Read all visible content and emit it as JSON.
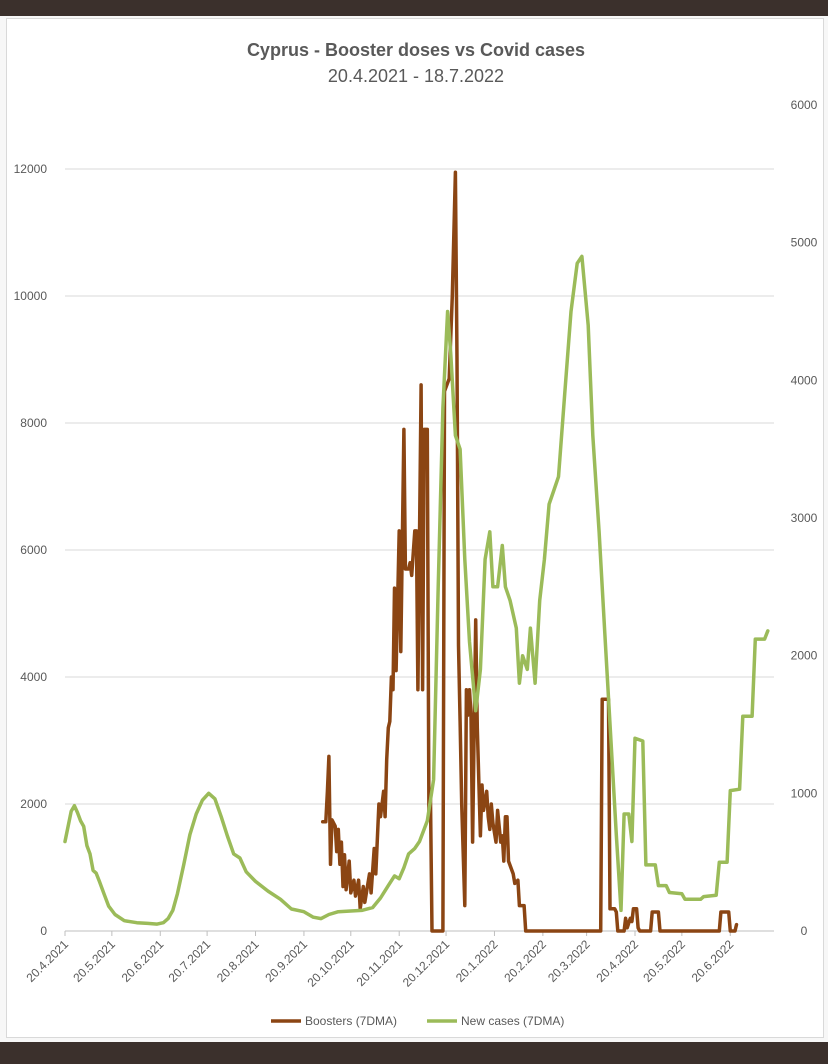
{
  "chart_data": {
    "type": "line",
    "title": "Cyprus - Booster doses vs Covid cases",
    "subtitle": "20.4.2021 - 18.7.2022",
    "x_tick_labels": [
      "20.4.2021",
      "20.5.2021",
      "20.6.2021",
      "20.7.2021",
      "20.8.2021",
      "20.9.2021",
      "20.10.2021",
      "20.11.2021",
      "20.12.2021",
      "20.1.2022",
      "20.2.2022",
      "20.3.2022",
      "20.4.2022",
      "20.5.2022",
      "20.6.2022"
    ],
    "x_range": [
      "2021-04-20",
      "2022-07-18"
    ],
    "y_left": {
      "ylim": [
        0,
        12000
      ],
      "ticks": [
        "0",
        "2000",
        "4000",
        "6000",
        "8000",
        "10000",
        "12000"
      ]
    },
    "y_right": {
      "ylim": [
        0,
        6000
      ],
      "ticks": [
        "0",
        "1000",
        "2000",
        "3000",
        "4000",
        "5000",
        "6000"
      ]
    },
    "grid": true,
    "legend_position": "bottom",
    "series": [
      {
        "name": "Boosters (7DMA)",
        "axis": "left",
        "color": "#8b4513",
        "points": [
          [
            "2021-10-02",
            1720
          ],
          [
            "2021-10-04",
            1720
          ],
          [
            "2021-10-05",
            2200
          ],
          [
            "2021-10-06",
            2750
          ],
          [
            "2021-10-07",
            1050
          ],
          [
            "2021-10-08",
            1750
          ],
          [
            "2021-10-10",
            1650
          ],
          [
            "2021-10-11",
            1250
          ],
          [
            "2021-10-12",
            1600
          ],
          [
            "2021-10-13",
            1050
          ],
          [
            "2021-10-14",
            1400
          ],
          [
            "2021-10-15",
            700
          ],
          [
            "2021-10-16",
            1200
          ],
          [
            "2021-10-17",
            650
          ],
          [
            "2021-10-19",
            1100
          ],
          [
            "2021-10-20",
            600
          ],
          [
            "2021-10-22",
            800
          ],
          [
            "2021-10-23",
            550
          ],
          [
            "2021-10-25",
            800
          ],
          [
            "2021-10-26",
            350
          ],
          [
            "2021-10-28",
            700
          ],
          [
            "2021-10-29",
            450
          ],
          [
            "2021-11-01",
            900
          ],
          [
            "2021-11-02",
            600
          ],
          [
            "2021-11-04",
            1300
          ],
          [
            "2021-11-05",
            900
          ],
          [
            "2021-11-07",
            2000
          ],
          [
            "2021-11-08",
            1800
          ],
          [
            "2021-11-10",
            2200
          ],
          [
            "2021-11-11",
            1800
          ],
          [
            "2021-11-12",
            2700
          ],
          [
            "2021-11-13",
            3200
          ],
          [
            "2021-11-14",
            3300
          ],
          [
            "2021-11-15",
            4000
          ],
          [
            "2021-11-16",
            3800
          ],
          [
            "2021-11-17",
            5400
          ],
          [
            "2021-11-18",
            4100
          ],
          [
            "2021-11-20",
            6300
          ],
          [
            "2021-11-21",
            4400
          ],
          [
            "2021-11-23",
            7900
          ],
          [
            "2021-11-24",
            5700
          ],
          [
            "2021-11-26",
            5700
          ],
          [
            "2021-11-27",
            5800
          ],
          [
            "2021-11-28",
            5600
          ],
          [
            "2021-11-30",
            6300
          ],
          [
            "2021-12-01",
            6300
          ],
          [
            "2021-12-02",
            3800
          ],
          [
            "2021-12-04",
            8600
          ],
          [
            "2021-12-05",
            3800
          ],
          [
            "2021-12-06",
            7900
          ],
          [
            "2021-12-08",
            7900
          ],
          [
            "2021-12-09",
            1900
          ],
          [
            "2021-12-10",
            2200
          ],
          [
            "2021-12-11",
            0
          ],
          [
            "2021-12-18",
            0
          ],
          [
            "2021-12-19",
            8500
          ],
          [
            "2021-12-22",
            8700
          ],
          [
            "2021-12-24",
            10000
          ],
          [
            "2021-12-26",
            11950
          ],
          [
            "2021-12-27",
            9000
          ],
          [
            "2021-12-28",
            4500
          ],
          [
            "2021-12-29",
            3300
          ],
          [
            "2021-12-30",
            2000
          ],
          [
            "2022-01-01",
            400
          ],
          [
            "2022-01-02",
            3800
          ],
          [
            "2022-01-03",
            3400
          ],
          [
            "2022-01-04",
            3800
          ],
          [
            "2022-01-05",
            3400
          ],
          [
            "2022-01-06",
            1400
          ],
          [
            "2022-01-08",
            4900
          ],
          [
            "2022-01-09",
            3200
          ],
          [
            "2022-01-11",
            1500
          ],
          [
            "2022-01-12",
            2300
          ],
          [
            "2022-01-13",
            1900
          ],
          [
            "2022-01-15",
            2200
          ],
          [
            "2022-01-16",
            1800
          ],
          [
            "2022-01-17",
            1600
          ],
          [
            "2022-01-18",
            2000
          ],
          [
            "2022-01-19",
            1700
          ],
          [
            "2022-01-21",
            1400
          ],
          [
            "2022-01-22",
            1900
          ],
          [
            "2022-01-24",
            1400
          ],
          [
            "2022-01-25",
            1500
          ],
          [
            "2022-01-26",
            1100
          ],
          [
            "2022-01-27",
            1800
          ],
          [
            "2022-01-28",
            1800
          ],
          [
            "2022-01-29",
            1100
          ],
          [
            "2022-02-01",
            900
          ],
          [
            "2022-02-02",
            750
          ],
          [
            "2022-02-04",
            800
          ],
          [
            "2022-02-05",
            400
          ],
          [
            "2022-02-08",
            400
          ],
          [
            "2022-02-09",
            0
          ],
          [
            "2022-03-24",
            0
          ],
          [
            "2022-03-29",
            0
          ],
          [
            "2022-03-30",
            3650
          ],
          [
            "2022-04-03",
            3650
          ],
          [
            "2022-04-04",
            350
          ],
          [
            "2022-04-07",
            350
          ],
          [
            "2022-04-08",
            300
          ],
          [
            "2022-04-09",
            0
          ],
          [
            "2022-04-13",
            0
          ],
          [
            "2022-04-14",
            200
          ],
          [
            "2022-04-15",
            50
          ],
          [
            "2022-04-17",
            200
          ],
          [
            "2022-04-18",
            150
          ],
          [
            "2022-04-19",
            350
          ],
          [
            "2022-04-21",
            350
          ],
          [
            "2022-04-22",
            50
          ],
          [
            "2022-04-23",
            0
          ],
          [
            "2022-04-30",
            0
          ],
          [
            "2022-05-01",
            300
          ],
          [
            "2022-05-05",
            300
          ],
          [
            "2022-05-06",
            0
          ],
          [
            "2022-06-13",
            0
          ],
          [
            "2022-06-14",
            300
          ],
          [
            "2022-06-19",
            300
          ],
          [
            "2022-06-20",
            0
          ],
          [
            "2022-06-23",
            0
          ],
          [
            "2022-06-24",
            100
          ]
        ]
      },
      {
        "name": "New cases (7DMA)",
        "axis": "right",
        "color": "#9bbb59",
        "points": [
          [
            "2021-04-20",
            650
          ],
          [
            "2021-04-22",
            760
          ],
          [
            "2021-04-24",
            870
          ],
          [
            "2021-04-26",
            910
          ],
          [
            "2021-04-28",
            860
          ],
          [
            "2021-04-30",
            800
          ],
          [
            "2021-05-02",
            760
          ],
          [
            "2021-05-04",
            620
          ],
          [
            "2021-05-06",
            560
          ],
          [
            "2021-05-08",
            440
          ],
          [
            "2021-05-10",
            420
          ],
          [
            "2021-05-12",
            360
          ],
          [
            "2021-05-15",
            270
          ],
          [
            "2021-05-18",
            180
          ],
          [
            "2021-05-22",
            120
          ],
          [
            "2021-05-28",
            75
          ],
          [
            "2021-06-05",
            60
          ],
          [
            "2021-06-12",
            55
          ],
          [
            "2021-06-18",
            50
          ],
          [
            "2021-06-22",
            60
          ],
          [
            "2021-06-25",
            90
          ],
          [
            "2021-06-28",
            150
          ],
          [
            "2021-07-01",
            270
          ],
          [
            "2021-07-05",
            480
          ],
          [
            "2021-07-09",
            700
          ],
          [
            "2021-07-13",
            850
          ],
          [
            "2021-07-17",
            950
          ],
          [
            "2021-07-21",
            1000
          ],
          [
            "2021-07-25",
            960
          ],
          [
            "2021-07-29",
            830
          ],
          [
            "2021-08-02",
            690
          ],
          [
            "2021-08-06",
            560
          ],
          [
            "2021-08-10",
            530
          ],
          [
            "2021-08-14",
            430
          ],
          [
            "2021-08-20",
            360
          ],
          [
            "2021-08-28",
            290
          ],
          [
            "2021-09-05",
            230
          ],
          [
            "2021-09-12",
            160
          ],
          [
            "2021-09-20",
            140
          ],
          [
            "2021-09-26",
            100
          ],
          [
            "2021-10-01",
            90
          ],
          [
            "2021-10-06",
            120
          ],
          [
            "2021-10-12",
            140
          ],
          [
            "2021-10-20",
            145
          ],
          [
            "2021-10-27",
            150
          ],
          [
            "2021-11-03",
            170
          ],
          [
            "2021-11-08",
            240
          ],
          [
            "2021-11-13",
            330
          ],
          [
            "2021-11-17",
            400
          ],
          [
            "2021-11-20",
            380
          ],
          [
            "2021-11-23",
            460
          ],
          [
            "2021-11-26",
            560
          ],
          [
            "2021-11-30",
            600
          ],
          [
            "2021-12-03",
            650
          ],
          [
            "2021-12-08",
            800
          ],
          [
            "2021-12-12",
            1100
          ],
          [
            "2021-12-15",
            2500
          ],
          [
            "2021-12-18",
            3800
          ],
          [
            "2021-12-21",
            4500
          ],
          [
            "2021-12-23",
            4200
          ],
          [
            "2021-12-26",
            3600
          ],
          [
            "2021-12-29",
            3500
          ],
          [
            "2022-01-01",
            2700
          ],
          [
            "2022-01-04",
            2100
          ],
          [
            "2022-01-08",
            1600
          ],
          [
            "2022-01-11",
            1900
          ],
          [
            "2022-01-14",
            2700
          ],
          [
            "2022-01-17",
            2900
          ],
          [
            "2022-01-19",
            2500
          ],
          [
            "2022-01-22",
            2500
          ],
          [
            "2022-01-25",
            2800
          ],
          [
            "2022-01-27",
            2500
          ],
          [
            "2022-01-30",
            2400
          ],
          [
            "2022-02-03",
            2200
          ],
          [
            "2022-02-05",
            1800
          ],
          [
            "2022-02-07",
            2000
          ],
          [
            "2022-02-10",
            1900
          ],
          [
            "2022-02-12",
            2200
          ],
          [
            "2022-02-15",
            1800
          ],
          [
            "2022-02-18",
            2400
          ],
          [
            "2022-02-21",
            2700
          ],
          [
            "2022-02-24",
            3100
          ],
          [
            "2022-02-27",
            3200
          ],
          [
            "2022-03-02",
            3300
          ],
          [
            "2022-03-06",
            3900
          ],
          [
            "2022-03-10",
            4500
          ],
          [
            "2022-03-14",
            4850
          ],
          [
            "2022-03-17",
            4900
          ],
          [
            "2022-03-21",
            4400
          ],
          [
            "2022-03-24",
            3600
          ],
          [
            "2022-03-28",
            2900
          ],
          [
            "2022-04-01",
            2100
          ],
          [
            "2022-04-05",
            1300
          ],
          [
            "2022-04-08",
            700
          ],
          [
            "2022-04-11",
            150
          ],
          [
            "2022-04-13",
            850
          ],
          [
            "2022-04-16",
            850
          ],
          [
            "2022-04-18",
            650
          ],
          [
            "2022-04-20",
            1400
          ],
          [
            "2022-04-25",
            1380
          ],
          [
            "2022-04-27",
            480
          ],
          [
            "2022-05-03",
            480
          ],
          [
            "2022-05-05",
            330
          ],
          [
            "2022-05-10",
            330
          ],
          [
            "2022-05-12",
            280
          ],
          [
            "2022-05-20",
            270
          ],
          [
            "2022-05-22",
            230
          ],
          [
            "2022-06-01",
            230
          ],
          [
            "2022-06-03",
            250
          ],
          [
            "2022-06-11",
            260
          ],
          [
            "2022-06-13",
            500
          ],
          [
            "2022-06-18",
            500
          ],
          [
            "2022-06-20",
            1020
          ],
          [
            "2022-06-26",
            1030
          ],
          [
            "2022-06-28",
            1560
          ],
          [
            "2022-07-04",
            1560
          ],
          [
            "2022-07-06",
            2120
          ],
          [
            "2022-07-12",
            2120
          ],
          [
            "2022-07-14",
            2180
          ]
        ]
      }
    ]
  }
}
